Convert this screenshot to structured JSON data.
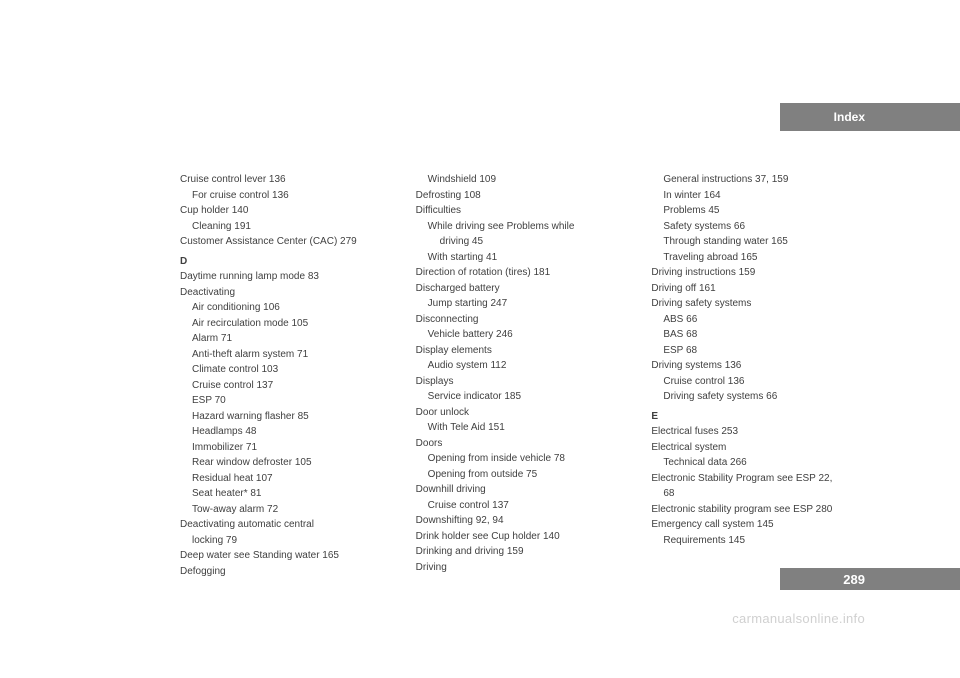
{
  "header": {
    "title": "Index"
  },
  "page_number": "289",
  "watermark": "carmanualsonline.info",
  "columns": [
    {
      "entries": [
        {
          "text": "Cruise control lever    136",
          "sub": 0
        },
        {
          "text": "For cruise control    136",
          "sub": 1
        },
        {
          "text": "Cup holder    140",
          "sub": 0
        },
        {
          "text": "Cleaning    191",
          "sub": 1
        },
        {
          "text": "Customer Assistance Center (CAC)    279",
          "sub": 0
        },
        {
          "text": "D",
          "sub": 0,
          "letter": true
        },
        {
          "text": "Daytime running lamp mode    83",
          "sub": 0
        },
        {
          "text": "Deactivating",
          "sub": 0
        },
        {
          "text": "Air conditioning    106",
          "sub": 1
        },
        {
          "text": "Air recirculation mode    105",
          "sub": 1
        },
        {
          "text": "Alarm    71",
          "sub": 1
        },
        {
          "text": "Anti-theft alarm system    71",
          "sub": 1
        },
        {
          "text": "Climate control    103",
          "sub": 1
        },
        {
          "text": "Cruise control    137",
          "sub": 1
        },
        {
          "text": "ESP    70",
          "sub": 1
        },
        {
          "text": "Hazard warning flasher    85",
          "sub": 1
        },
        {
          "text": "Headlamps    48",
          "sub": 1
        },
        {
          "text": "Immobilizer    71",
          "sub": 1
        },
        {
          "text": "Rear window defroster    105",
          "sub": 1
        },
        {
          "text": "Residual heat    107",
          "sub": 1
        },
        {
          "text": "Seat heater*    81",
          "sub": 1
        },
        {
          "text": "Tow-away alarm    72",
          "sub": 1
        },
        {
          "text": "Deactivating automatic central",
          "sub": 0
        },
        {
          "text": "locking    79",
          "sub": 1
        },
        {
          "text": "Deep water see Standing water    165",
          "sub": 0
        },
        {
          "text": "Defogging",
          "sub": 0
        }
      ]
    },
    {
      "entries": [
        {
          "text": "Windshield    109",
          "sub": 1
        },
        {
          "text": "Defrosting    108",
          "sub": 0
        },
        {
          "text": "Difficulties",
          "sub": 0
        },
        {
          "text": "While driving see Problems while",
          "sub": 1
        },
        {
          "text": "driving    45",
          "sub": 2
        },
        {
          "text": "With starting    41",
          "sub": 1
        },
        {
          "text": "Direction of rotation (tires)    181",
          "sub": 0
        },
        {
          "text": "Discharged battery",
          "sub": 0
        },
        {
          "text": "Jump starting    247",
          "sub": 1
        },
        {
          "text": "Disconnecting",
          "sub": 0
        },
        {
          "text": "Vehicle battery    246",
          "sub": 1
        },
        {
          "text": "Display elements",
          "sub": 0
        },
        {
          "text": "Audio system    112",
          "sub": 1
        },
        {
          "text": "Displays",
          "sub": 0
        },
        {
          "text": "Service indicator    185",
          "sub": 1
        },
        {
          "text": "Door unlock",
          "sub": 0
        },
        {
          "text": "With Tele Aid    151",
          "sub": 1
        },
        {
          "text": "Doors",
          "sub": 0
        },
        {
          "text": "Opening from inside vehicle    78",
          "sub": 1
        },
        {
          "text": "Opening from outside    75",
          "sub": 1
        },
        {
          "text": "Downhill driving",
          "sub": 0
        },
        {
          "text": "Cruise control    137",
          "sub": 1
        },
        {
          "text": "Downshifting    92, 94",
          "sub": 0
        },
        {
          "text": "Drink holder see Cup holder    140",
          "sub": 0
        },
        {
          "text": "Drinking and driving    159",
          "sub": 0
        },
        {
          "text": "Driving",
          "sub": 0
        }
      ]
    },
    {
      "entries": [
        {
          "text": "General instructions    37, 159",
          "sub": 1
        },
        {
          "text": "In winter    164",
          "sub": 1
        },
        {
          "text": "Problems    45",
          "sub": 1
        },
        {
          "text": "Safety systems    66",
          "sub": 1
        },
        {
          "text": "Through standing water    165",
          "sub": 1
        },
        {
          "text": "Traveling abroad    165",
          "sub": 1
        },
        {
          "text": "Driving instructions    159",
          "sub": 0
        },
        {
          "text": "Driving off    161",
          "sub": 0
        },
        {
          "text": "Driving safety systems",
          "sub": 0
        },
        {
          "text": "ABS    66",
          "sub": 1
        },
        {
          "text": "BAS    68",
          "sub": 1
        },
        {
          "text": "ESP    68",
          "sub": 1
        },
        {
          "text": "Driving systems    136",
          "sub": 0
        },
        {
          "text": "Cruise control    136",
          "sub": 1
        },
        {
          "text": "Driving safety systems    66",
          "sub": 1
        },
        {
          "text": "E",
          "sub": 0,
          "letter": true
        },
        {
          "text": "Electrical fuses    253",
          "sub": 0
        },
        {
          "text": "Electrical system",
          "sub": 0
        },
        {
          "text": "Technical data    266",
          "sub": 1
        },
        {
          "text": "Electronic Stability Program see ESP    22,",
          "sub": 0
        },
        {
          "text": "68",
          "sub": 1
        },
        {
          "text": "Electronic stability program see ESP    280",
          "sub": 0
        },
        {
          "text": "Emergency call system    145",
          "sub": 0
        },
        {
          "text": "Requirements    145",
          "sub": 1
        }
      ]
    }
  ]
}
